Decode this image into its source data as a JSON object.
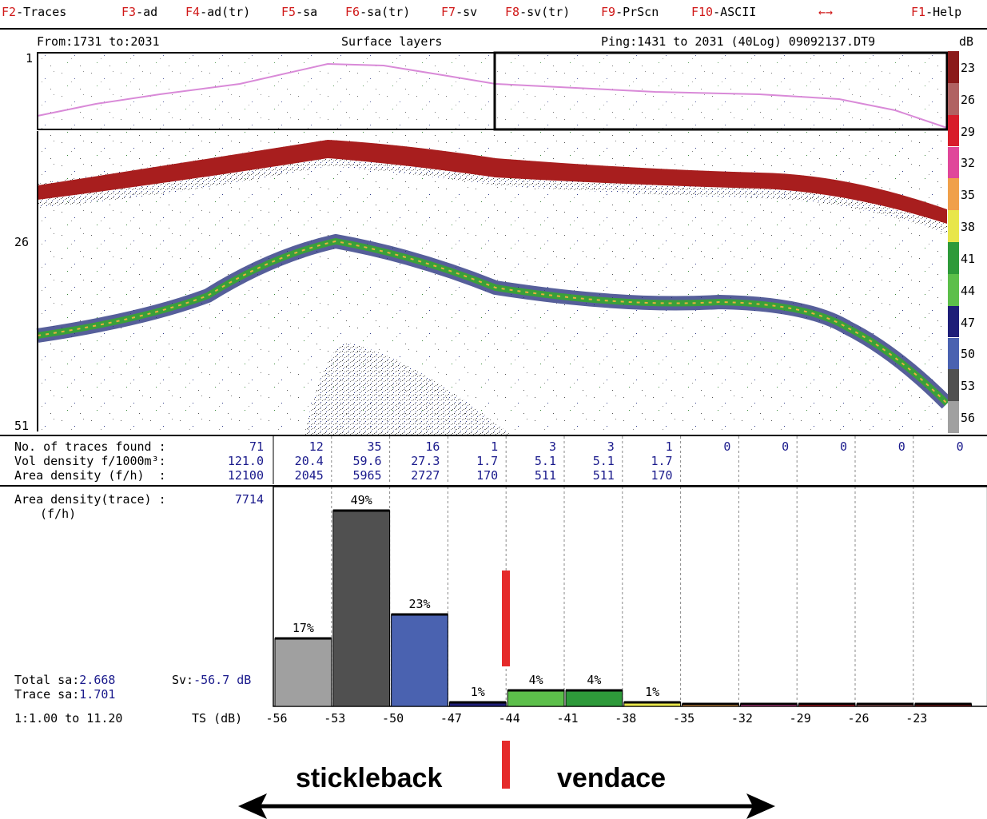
{
  "menu": {
    "items": [
      {
        "key": "F2",
        "label": "-Traces"
      },
      {
        "key": "F3",
        "label": "-ad"
      },
      {
        "key": "F4",
        "label": "-ad(tr)"
      },
      {
        "key": "F5",
        "label": "-sa"
      },
      {
        "key": "F6",
        "label": "-sa(tr)"
      },
      {
        "key": "F7",
        "label": "-sv"
      },
      {
        "key": "F8",
        "label": "-sv(tr)"
      },
      {
        "key": "F9",
        "label": "-PrScn"
      },
      {
        "key": "F10",
        "label": "-ASCII"
      }
    ],
    "arrows": "←→",
    "help": {
      "key": "F1",
      "label": "-Help"
    }
  },
  "header": {
    "range": "From:1731 to:2031",
    "title": "Surface layers",
    "ping": "Ping:1431 to 2031 (40Log) 09092137.DT9",
    "db_unit": "dB"
  },
  "depth_ticks": [
    "1",
    "26",
    "51"
  ],
  "color_scale": {
    "labels": [
      "23",
      "26",
      "29",
      "32",
      "35",
      "38",
      "41",
      "44",
      "47",
      "50",
      "53",
      "56"
    ],
    "colors": [
      "#8b1a1a",
      "#b06262",
      "#d81c2a",
      "#e0479a",
      "#f0a04a",
      "#e8e64a",
      "#2e9a3a",
      "#5cbf4a",
      "#1e1e78",
      "#4a62b0",
      "#505050",
      "#a0a0a0"
    ]
  },
  "stats": {
    "traces_label": "No. of traces found :",
    "vol_label": "Vol density f/1000m³:",
    "area_label": "Area density (f/h)  :",
    "traces_total": "71",
    "vol_total": "121.0",
    "area_total": "12100",
    "traces": [
      "12",
      "35",
      "16",
      "1",
      "3",
      "3",
      "1",
      "0",
      "0",
      "0",
      "0",
      "0"
    ],
    "vol": [
      "20.4",
      "59.6",
      "27.3",
      "1.7",
      "5.1",
      "5.1",
      "1.7"
    ],
    "area": [
      "2045",
      "5965",
      "2727",
      "170",
      "511",
      "511",
      "170"
    ]
  },
  "histogram": {
    "label": "Area density(trace) :",
    "unit": "(f/h)",
    "value": "7714",
    "total_sa_label": "Total sa:",
    "total_sa": "2.668",
    "trace_sa_label": "Trace sa:",
    "trace_sa": "1.701",
    "sv_label": "Sv:",
    "sv": "-56.7 dB"
  },
  "chart_data": {
    "type": "bar",
    "xlabel": "TS (dB)",
    "scale_label": "1:1.00 to 11.20",
    "ticks": [
      "-56",
      "-53",
      "-50",
      "-47",
      "-44",
      "-41",
      "-38",
      "-35",
      "-32",
      "-29",
      "-26",
      "-23"
    ],
    "categories": [
      "-56",
      "-53",
      "-50",
      "-47",
      "-44",
      "-41",
      "-38",
      "-35",
      "-32",
      "-29",
      "-26",
      "-23"
    ],
    "values": [
      17,
      49,
      23,
      1,
      4,
      4,
      1,
      0,
      0,
      0,
      0,
      0
    ],
    "value_labels": [
      "17%",
      "49%",
      "23%",
      "1%",
      "4%",
      "4%",
      "1%",
      "",
      "",
      "",
      "",
      ""
    ],
    "bar_colors": [
      "#a0a0a0",
      "#505050",
      "#4a62b0",
      "#1e1e78",
      "#5cbf4a",
      "#2e9a3a",
      "#e8e64a",
      "#f0a04a",
      "#e0479a",
      "#d81c2a",
      "#b06262",
      "#8b1a1a"
    ],
    "ylim": [
      0,
      49
    ]
  },
  "annotation": {
    "left": "stickleback",
    "right": "vendace",
    "divider_ts": "-44"
  }
}
